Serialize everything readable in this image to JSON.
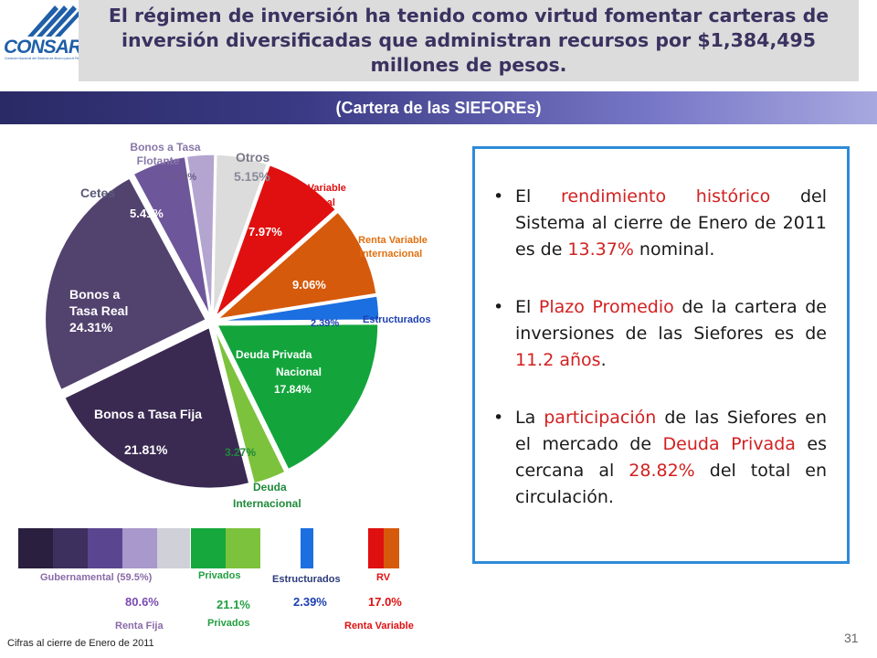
{
  "logo": {
    "word_con": "CON",
    "word_sar": "SAR",
    "subtitle": "Comisión Nacional del Sistema de Ahorro para el Retiro"
  },
  "title": "El régimen de inversión ha tenido como virtud fomentar carteras de inversión diversificadas que administran recursos por $1,384,495 millones de pesos.",
  "subtitle": "(Cartera de las SIEFOREs)",
  "chart_data": {
    "type": "pie",
    "title": "(Cartera de las SIEFOREs)",
    "slices": [
      {
        "label": "Otros",
        "value": 5.15,
        "value_label": "5.15%",
        "color": "#dcdcdc"
      },
      {
        "label": "Renta Variable Nacional",
        "value": 7.97,
        "value_label": "7.97%",
        "color": "#e01010"
      },
      {
        "label": "Renta Variable Internacional",
        "value": 9.06,
        "value_label": "9.06%",
        "color": "#d65a0c"
      },
      {
        "label": "Estructurados",
        "value": 2.39,
        "value_label": "2.39%",
        "color": "#1c6fe0"
      },
      {
        "label": "Deuda Privada Nacional",
        "value": 17.84,
        "value_label": "17.84%",
        "color": "#13a53c"
      },
      {
        "label": "Deuda Internacional",
        "value": 3.27,
        "value_label": "3.27%",
        "color": "#7cc23c"
      },
      {
        "label": "Bonos a Tasa Fija",
        "value": 21.81,
        "value_label": "21.81%",
        "color": "#3a2a52"
      },
      {
        "label": "Bonos a Tasa Real",
        "value": 24.31,
        "value_label": "24.31%",
        "color": "#52426e"
      },
      {
        "label": "Cetes",
        "value": 5.41,
        "value_label": "5.41%",
        "color": "#6e569a"
      },
      {
        "label": "Bonos a Tasa Flotante",
        "value": 2.79,
        "value_label": "2.79%",
        "color": "#b4a4d0"
      }
    ]
  },
  "pie_labels": {
    "otros_name": "Otros",
    "otros_value": "5.15%",
    "flotante_name_1": "Bonos a Tasa",
    "flotante_name_2": "Flotante",
    "flotante_value": "2.79%",
    "cetes_name": "Cetes",
    "cetes_value": "5.41%",
    "real_name_1": "Bonos a",
    "real_name_2": "Tasa Real",
    "real_value": "24.31%",
    "fija_name": "Bonos a Tasa Fija",
    "fija_value": "21.81%",
    "rvn_name_1": "Renta Variable",
    "rvn_name_2": "Nacional",
    "rvn_value": "7.97%",
    "rvi_name_1": "Renta Variable",
    "rvi_name_2": "Internacional",
    "rvi_value": "9.06%",
    "estr_name": "Estructurados",
    "estr_value": "2.39%",
    "dpn_name_1": "Deuda Privada",
    "dpn_name_2": "Nacional",
    "dpn_value": "17.84%",
    "di_name_1": "Deuda",
    "di_name_2": "Internacional",
    "di_value": "3.27%"
  },
  "info": {
    "item1": {
      "a": "El ",
      "b": "rendimiento histórico",
      "c": " del Sistema al cierre de Enero de 2011 es de ",
      "d": "13.37%",
      "e": " nominal."
    },
    "item2": {
      "a": "El ",
      "b": "Plazo Promedio",
      "c": " de la cartera de inversiones de las Siefores es de ",
      "d": "11.2 años",
      "e": "."
    },
    "item3": {
      "a": "La ",
      "b": "participación",
      "c": " de las Siefores en el mercado de ",
      "d": "Deuda Privada",
      "e": " es cercana al ",
      "f": "28.82%",
      "g": " del total en circulación."
    }
  },
  "legend": {
    "gubernamental": "Gubernamental  (59.5%)",
    "privados_top": "Privados",
    "estructurados": "Estructurados",
    "rv": "RV",
    "renta_fija_value": "80.6%",
    "privados_value": "21.1%",
    "estructurados_value": "2.39%",
    "rv_value": "17.0%",
    "renta_fija": "Renta Fija",
    "privados_bottom": "Privados",
    "renta_variable": "Renta Variable"
  },
  "footnote": "Cifras al cierre de Enero de 2011",
  "page_number": "31"
}
